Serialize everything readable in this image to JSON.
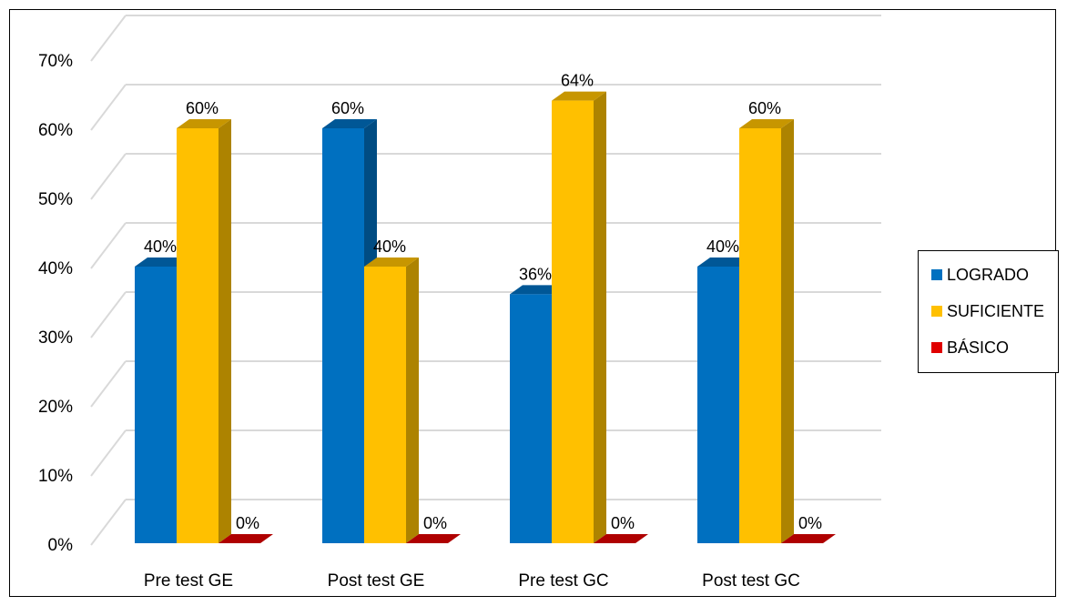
{
  "chart_data": {
    "type": "bar",
    "style": "3d-clustered-column",
    "categories": [
      "Pre test GE",
      "Post test GE",
      "Pre test GC",
      "Post test GC"
    ],
    "series": [
      {
        "name": "LOGRADO",
        "values": [
          40,
          60,
          36,
          40
        ],
        "color": "#0070C0"
      },
      {
        "name": "SUFICIENTE",
        "values": [
          60,
          40,
          64,
          60
        ],
        "color": "#FFC000"
      },
      {
        "name": "BÁSICO",
        "values": [
          0,
          0,
          0,
          0
        ],
        "color": "#E00000"
      }
    ],
    "data_labels": [
      [
        "40%",
        "60%",
        "36%",
        "40%"
      ],
      [
        "60%",
        "40%",
        "64%",
        "60%"
      ],
      [
        "0%",
        "0%",
        "0%",
        "0%"
      ]
    ],
    "y_ticks": [
      "0%",
      "10%",
      "20%",
      "30%",
      "40%",
      "50%",
      "60%",
      "70%"
    ],
    "ylim": [
      0,
      70
    ],
    "grid": true,
    "legend_position": "right"
  }
}
